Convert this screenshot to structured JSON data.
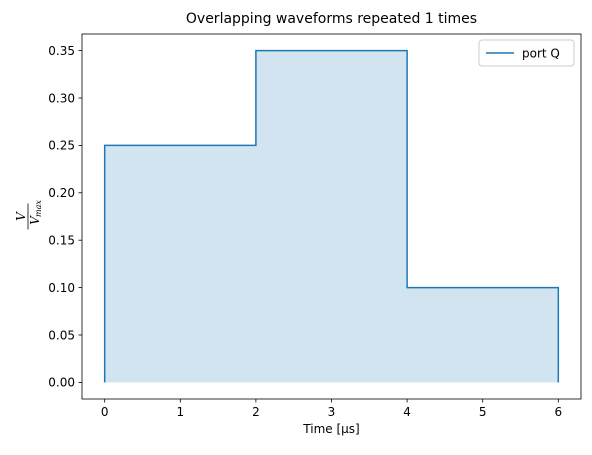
{
  "chart_data": {
    "type": "line",
    "title": "Overlapping waveforms repeated 1 times",
    "xlabel": "Time [μs]",
    "ylabel": {
      "numerator": "V",
      "denominator_base": "V",
      "denominator_sub": "max"
    },
    "xlim": [
      -0.3,
      6.3
    ],
    "ylim": [
      -0.0175,
      0.3675
    ],
    "xticks": [
      0,
      1,
      2,
      3,
      4,
      5,
      6
    ],
    "xtick_labels": [
      "0",
      "1",
      "2",
      "3",
      "4",
      "5",
      "6"
    ],
    "yticks": [
      0.0,
      0.05,
      0.1,
      0.15,
      0.2,
      0.25,
      0.3,
      0.35
    ],
    "ytick_labels": [
      "0.00",
      "0.05",
      "0.10",
      "0.15",
      "0.20",
      "0.25",
      "0.30",
      "0.35"
    ],
    "grid": false,
    "legend_position": "upper right",
    "series": [
      {
        "name": "port Q",
        "color": "#1f77b4",
        "fill_color": "#1f77b4",
        "fill_opacity": 0.2,
        "points": [
          [
            0,
            0
          ],
          [
            0,
            0.25
          ],
          [
            2,
            0.25
          ],
          [
            2,
            0.35
          ],
          [
            4,
            0.35
          ],
          [
            4,
            0.1
          ],
          [
            6,
            0.1
          ],
          [
            6,
            0
          ]
        ]
      }
    ]
  }
}
